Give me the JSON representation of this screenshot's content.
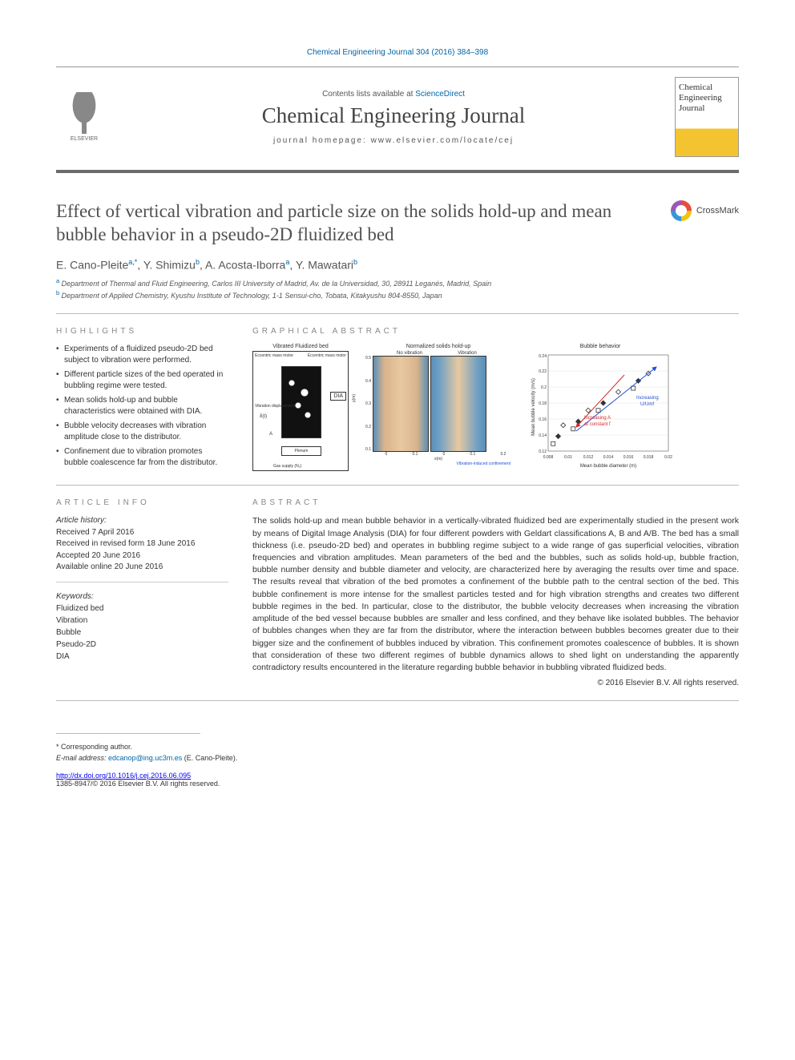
{
  "citation": "Chemical Engineering Journal 304 (2016) 384–398",
  "header": {
    "contents_prefix": "Contents lists available at ",
    "contents_link": "ScienceDirect",
    "journal_name": "Chemical Engineering Journal",
    "homepage_prefix": "journal homepage: ",
    "homepage_url": "www.elsevier.com/locate/cej",
    "publisher_logo_text": "ELSEVIER",
    "cover_text": "Chemical Engineering Journal"
  },
  "crossmark_label": "CrossMark",
  "title": "Effect of vertical vibration and particle size on the solids hold-up and mean bubble behavior in a pseudo-2D fluidized bed",
  "authors_html": "E. Cano-Pleite",
  "author_list": [
    {
      "name": "E. Cano-Pleite",
      "sup": "a,*"
    },
    {
      "name": "Y. Shimizu",
      "sup": "b"
    },
    {
      "name": "A. Acosta-Iborra",
      "sup": "a"
    },
    {
      "name": "Y. Mawatari",
      "sup": "b"
    }
  ],
  "affiliations": [
    {
      "sup": "a",
      "text": "Department of Thermal and Fluid Engineering, Carlos III University of Madrid, Av. de la Universidad, 30, 28911 Leganés, Madrid, Spain"
    },
    {
      "sup": "b",
      "text": "Department of Applied Chemistry, Kyushu Institute of Technology, 1-1 Sensui-cho, Tobata, Kitakyushu 804-8550, Japan"
    }
  ],
  "highlights": {
    "label": "HIGHLIGHTS",
    "items": [
      "Experiments of a fluidized pseudo-2D bed subject to vibration were performed.",
      "Different particle sizes of the bed operated in bubbling regime were tested.",
      "Mean solids hold-up and bubble characteristics were obtained with DIA.",
      "Bubble velocity decreases with vibration amplitude close to the distributor.",
      "Confinement due to vibration promotes bubble coalescence far from the distributor."
    ]
  },
  "article_info": {
    "label": "ARTICLE INFO",
    "history_head": "Article history:",
    "history": [
      "Received 7 April 2016",
      "Received in revised form 18 June 2016",
      "Accepted 20 June 2016",
      "Available online 20 June 2016"
    ],
    "keywords_head": "Keywords:",
    "keywords": [
      "Fluidized bed",
      "Vibration",
      "Bubble",
      "Pseudo-2D",
      "DIA"
    ]
  },
  "graphical_abstract": {
    "label": "GRAPHICAL ABSTRACT",
    "panel1": {
      "title": "Vibrated Fluidized bed",
      "labels": [
        "Eccentric mass motor",
        "Eccentric mass motor",
        "DIA",
        "Vibration displacement",
        "δ(t)",
        "A",
        "Plenum",
        "Gas supply (N₂)"
      ]
    },
    "panel2": {
      "title": "Normalized solids hold-up",
      "sub_left": "No vibration",
      "sub_right": "Vibration",
      "y_label": "y(m)",
      "y_ticks": [
        0.1,
        0.2,
        0.3,
        0.4,
        0.5
      ],
      "x_label": "x(m)",
      "x_ticks": [
        0,
        0.1,
        0,
        0.1,
        0.2
      ],
      "annotation": "Vibration-induced confinement",
      "colors": {
        "edge": "#5b8fb9",
        "center": "#e8c9a0"
      }
    },
    "panel3": {
      "title": "Bubble behavior",
      "type": "scatter",
      "x_label": "Mean bubble diameter (m)",
      "y_label": "Mean bubble velocity (m/s)",
      "xlim": [
        0.008,
        0.02
      ],
      "ylim": [
        0.11,
        0.24
      ],
      "x_ticks": [
        0.008,
        0.01,
        0.012,
        0.014,
        0.016,
        0.018,
        0.02
      ],
      "y_ticks": [
        0.12,
        0.14,
        0.16,
        0.18,
        0.2,
        0.22,
        0.24
      ],
      "series": [
        {
          "marker": "diamond-open",
          "color": "#333333",
          "points": [
            [
              0.0095,
              0.145
            ],
            [
              0.012,
              0.165
            ],
            [
              0.015,
              0.19
            ],
            [
              0.018,
              0.215
            ]
          ]
        },
        {
          "marker": "diamond-filled",
          "color": "#333333",
          "points": [
            [
              0.009,
              0.13
            ],
            [
              0.011,
              0.15
            ],
            [
              0.0135,
              0.175
            ],
            [
              0.017,
              0.205
            ]
          ]
        },
        {
          "marker": "square",
          "color": "#333333",
          "points": [
            [
              0.0085,
              0.12
            ],
            [
              0.0105,
              0.14
            ],
            [
              0.013,
              0.165
            ],
            [
              0.0165,
              0.195
            ]
          ]
        }
      ],
      "annotations": [
        {
          "text": "Increasing U/Umf",
          "color": "#1f4fd6"
        },
        {
          "text": "Increasing A at constant f",
          "color": "#d62728"
        }
      ],
      "axis_fontsize": 7,
      "grid_color": "#cccccc",
      "background_color": "#ffffff"
    }
  },
  "abstract": {
    "label": "ABSTRACT",
    "text": "The solids hold-up and mean bubble behavior in a vertically-vibrated fluidized bed are experimentally studied in the present work by means of Digital Image Analysis (DIA) for four different powders with Geldart classifications A, B and A/B. The bed has a small thickness (i.e. pseudo-2D bed) and operates in bubbling regime subject to a wide range of gas superficial velocities, vibration frequencies and vibration amplitudes. Mean parameters of the bed and the bubbles, such as solids hold-up, bubble fraction, bubble number density and bubble diameter and velocity, are characterized here by averaging the results over time and space. The results reveal that vibration of the bed promotes a confinement of the bubble path to the central section of the bed. This bubble confinement is more intense for the smallest particles tested and for high vibration strengths and creates two different bubble regimes in the bed. In particular, close to the distributor, the bubble velocity decreases when increasing the vibration amplitude of the bed vessel because bubbles are smaller and less confined, and they behave like isolated bubbles. The behavior of bubbles changes when they are far from the distributor, where the interaction between bubbles becomes greater due to their bigger size and the confinement of bubbles induced by vibration. This confinement promotes coalescence of bubbles. It is shown that consideration of these two different regimes of bubble dynamics allows to shed light on understanding the apparently contradictory results encountered in the literature regarding bubble behavior in bubbling vibrated fluidized beds.",
    "copyright": "© 2016 Elsevier B.V. All rights reserved."
  },
  "footer": {
    "corresponding": "* Corresponding author.",
    "email_label": "E-mail address: ",
    "email": "edcanop@ing.uc3m.es",
    "email_suffix": " (E. Cano-Pleite).",
    "doi": "http://dx.doi.org/10.1016/j.cej.2016.06.095",
    "issn": "1385-8947/© 2016 Elsevier B.V. All rights reserved."
  }
}
